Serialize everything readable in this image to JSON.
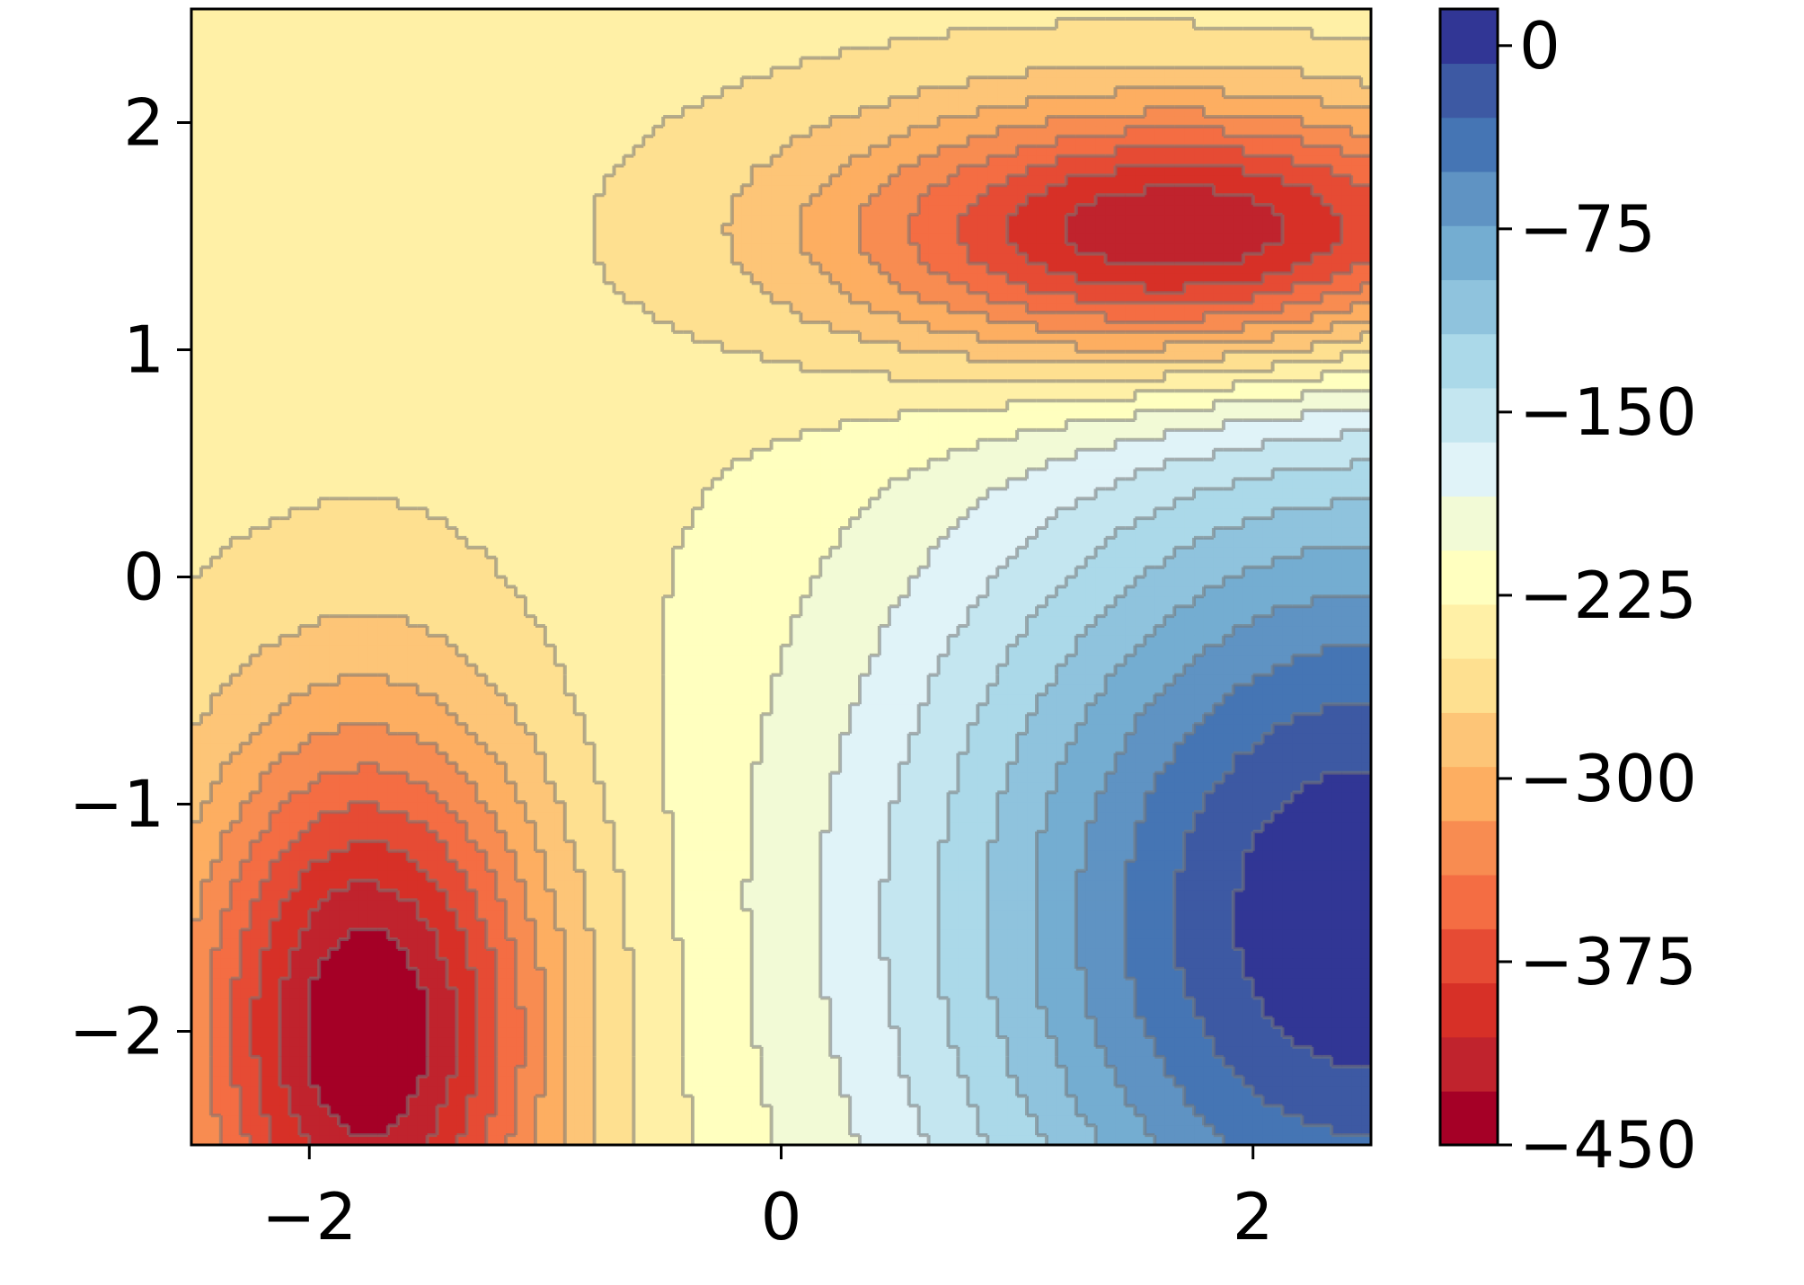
{
  "chart_data": {
    "type": "contour",
    "title": "",
    "xlabel": "",
    "ylabel": "",
    "xlim": [
      -2.5,
      2.5
    ],
    "ylim": [
      -2.5,
      2.5
    ],
    "x_ticks": [
      -2,
      0,
      2
    ],
    "x_tick_labels": [
      "−2",
      "0",
      "2"
    ],
    "y_ticks": [
      -2,
      -1,
      0,
      1,
      2
    ],
    "y_tick_labels": [
      "−2",
      "−1",
      "0",
      "1",
      "2"
    ],
    "value_range": [
      -450,
      15
    ],
    "features": [
      {
        "kind": "minimum",
        "x": -1.75,
        "y": -2.0,
        "value": -430
      },
      {
        "kind": "minimum",
        "x": 1.75,
        "y": 1.5,
        "value": -450
      },
      {
        "kind": "maximum",
        "x": 2.5,
        "y": -1.5,
        "value": 15
      }
    ],
    "contour_lines": {
      "style": "dashed below 0 / solid above",
      "color": "#777777"
    },
    "colormap": "RdYlBu",
    "colorbar": {
      "range": [
        -450,
        15
      ],
      "ticks": [
        0,
        -75,
        -150,
        -225,
        -300,
        -375,
        -450
      ],
      "tick_labels": [
        "0",
        "−75",
        "−150",
        "−225",
        "−300",
        "−375",
        "−450"
      ],
      "colors": [
        "#a50026",
        "#c0232d",
        "#d73027",
        "#e64b34",
        "#f46d43",
        "#f88c51",
        "#fdae61",
        "#fdc577",
        "#fee090",
        "#fff0a6",
        "#ffffbf",
        "#f2fad6",
        "#e0f3f8",
        "#c4e6f0",
        "#abd9e9",
        "#8fc3dd",
        "#74add1",
        "#5f93c3",
        "#4575b4",
        "#3d59a3",
        "#313695"
      ]
    }
  }
}
